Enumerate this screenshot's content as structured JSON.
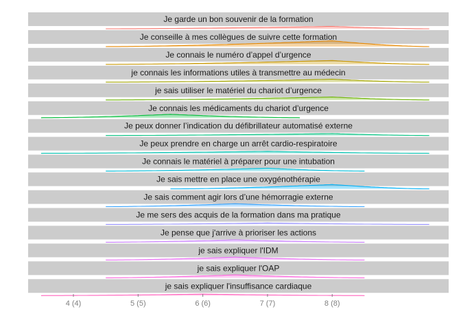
{
  "chart_data": {
    "type": "ridgeline",
    "x_ticks": [
      {
        "value": 4,
        "label": "4 (4)"
      },
      {
        "value": 5,
        "label": "5 (5)"
      },
      {
        "value": 6,
        "label": "6 (6)"
      },
      {
        "value": 7,
        "label": "7 (7)"
      },
      {
        "value": 8,
        "label": "8 (8)"
      }
    ],
    "xlim": [
      3.3,
      9.8
    ],
    "grid": false,
    "panels": [
      {
        "label": "Je garde un bon souvenir de la formation",
        "range": [
          4.5,
          9.5
        ],
        "peak": 8.0,
        "height": 0.25,
        "color": "#f8766d"
      },
      {
        "label": "Je conseille à mes collègues de suivre cette formation",
        "range": [
          4.5,
          9.5
        ],
        "peak": 8.0,
        "height": 0.6,
        "color": "#e58700"
      },
      {
        "label": "Je connais le numéro d’appel d’urgence",
        "range": [
          4.5,
          9.5
        ],
        "peak": 8.0,
        "height": 0.4,
        "color": "#c99800"
      },
      {
        "label": "je connais les informations utiles à transmettre au médecin",
        "range": [
          4.5,
          9.5
        ],
        "peak": 8.0,
        "height": 0.3,
        "color": "#a3a500"
      },
      {
        "label": "je sais utiliser le matériel du chariot d’urgence",
        "range": [
          4.5,
          9.5
        ],
        "peak": 8.0,
        "height": 0.3,
        "color": "#6bb100"
      },
      {
        "label": "Je connais les médicaments du chariot d’urgence",
        "range": [
          3.5,
          7.5
        ],
        "peak": 5.5,
        "height": 0.35,
        "color": "#00ba38"
      },
      {
        "label": "Je peux donner l’indication du défibrillateur automatisé externe",
        "range": [
          4.5,
          9.5
        ],
        "peak": 8.0,
        "height": 0.2,
        "color": "#00bf7d"
      },
      {
        "label": "Je peux prendre en charge un arrêt cardio-respiratoire",
        "range": [
          3.5,
          9.5
        ],
        "peak": 7.0,
        "height": 0.2,
        "color": "#00c0af"
      },
      {
        "label": "Je connais le matériel à préparer pour une intubation",
        "range": [
          4.5,
          8.5
        ],
        "peak": 7.0,
        "height": 0.3,
        "color": "#00bcd8"
      },
      {
        "label": "Je sais mettre en place une oxygénothérapie",
        "range": [
          5.5,
          9.5
        ],
        "peak": 8.0,
        "height": 0.45,
        "color": "#00b0f6"
      },
      {
        "label": "Je sais comment agir lors d’une hémorragie externe",
        "range": [
          4.5,
          8.5
        ],
        "peak": 6.5,
        "height": 0.3,
        "color": "#35a2ff"
      },
      {
        "label": "Je me sers des acquis de la formation dans ma pratique",
        "range": [
          4.5,
          9.5
        ],
        "peak": 7.0,
        "height": 0.15,
        "color": "#9590ff"
      },
      {
        "label": "Je pense que j'arrive à prioriser les actions",
        "range": [
          4.5,
          8.5
        ],
        "peak": 6.5,
        "height": 0.25,
        "color": "#c77cff"
      },
      {
        "label": "je sais expliquer l'IDM",
        "range": [
          4.5,
          8.5
        ],
        "peak": 6.5,
        "height": 0.3,
        "color": "#e76bf3"
      },
      {
        "label": "je sais expliquer l'OAP",
        "range": [
          4.5,
          8.5
        ],
        "peak": 6.5,
        "height": 0.3,
        "color": "#fa62db"
      },
      {
        "label": "je sais expliquer l'insuffisance cardiaque",
        "range": [
          3.5,
          8.5
        ],
        "peak": 6.0,
        "height": 0.15,
        "color": "#ff62bc"
      }
    ]
  }
}
